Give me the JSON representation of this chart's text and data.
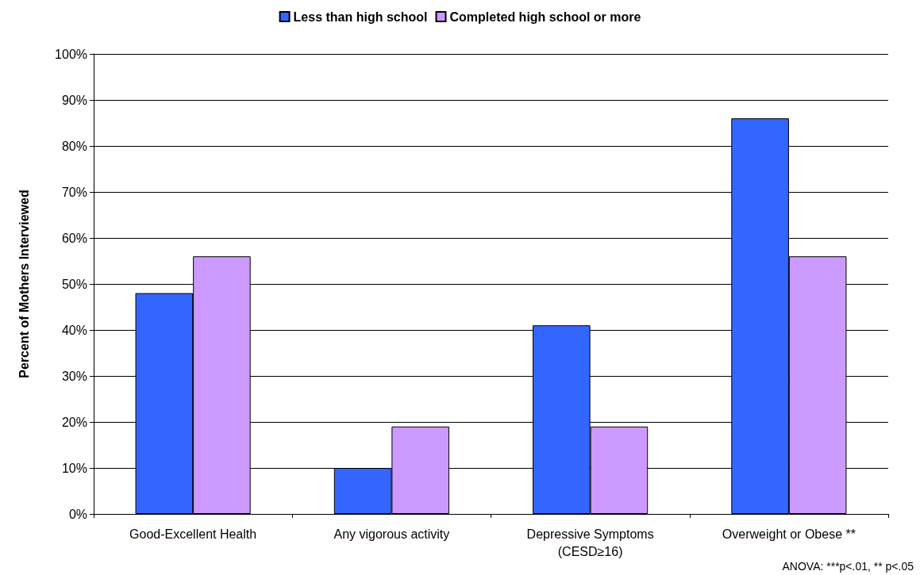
{
  "chart_data": {
    "type": "bar",
    "ylabel": "Percent of Mothers Interviewed",
    "categories": [
      "Good-Excellent Health",
      "Any vigorous activity",
      "Depressive Symptoms\n(CESD≥16)",
      "Overweight or Obese **"
    ],
    "series": [
      {
        "name": "Less than high school",
        "color": "#3366ff",
        "values": [
          48,
          10,
          41,
          86
        ]
      },
      {
        "name": "Completed high school or more",
        "color": "#cc99ff",
        "values": [
          56,
          19,
          19,
          56
        ]
      }
    ],
    "ylim": [
      0,
      100
    ],
    "yticks": [
      {
        "value": 0,
        "label": "0%"
      },
      {
        "value": 10,
        "label": "10%"
      },
      {
        "value": 20,
        "label": "20%"
      },
      {
        "value": 30,
        "label": "30%"
      },
      {
        "value": 40,
        "label": "40%"
      },
      {
        "value": 50,
        "label": "50%"
      },
      {
        "value": 60,
        "label": "60%"
      },
      {
        "value": 70,
        "label": "70%"
      },
      {
        "value": 80,
        "label": "80%"
      },
      {
        "value": 90,
        "label": "90%"
      },
      {
        "value": 100,
        "label": "100%"
      }
    ],
    "grid": "y",
    "legend": "top",
    "annotations": [
      "ANOVA: ***p<.01, ** p<.05"
    ]
  }
}
